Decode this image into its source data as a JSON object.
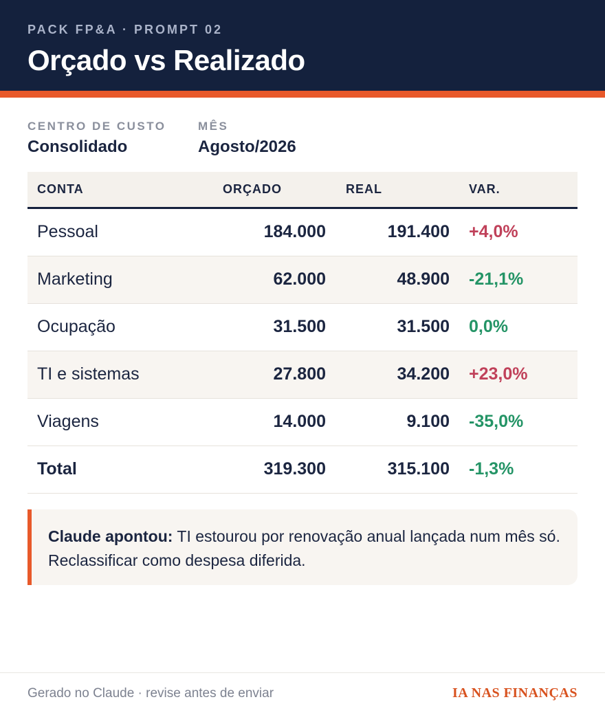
{
  "header": {
    "eyebrow": "PACK FP&A · PROMPT 02",
    "title": "Orçado vs Realizado",
    "accent_color": "#e8592a",
    "background_color": "#14213d"
  },
  "meta": {
    "cost_center_label": "CENTRO DE CUSTO",
    "cost_center_value": "Consolidado",
    "month_label": "MÊS",
    "month_value": "Agosto/2026"
  },
  "table": {
    "columns": [
      "CONTA",
      "ORÇADO",
      "REAL",
      "VAR."
    ],
    "rows": [
      {
        "conta": "Pessoal",
        "orcado": "184.000",
        "real": "191.400",
        "var": "+4,0%",
        "status": "over"
      },
      {
        "conta": "Marketing",
        "orcado": "62.000",
        "real": "48.900",
        "var": "-21,1%",
        "status": "under"
      },
      {
        "conta": "Ocupação",
        "orcado": "31.500",
        "real": "31.500",
        "var": "0,0%",
        "status": "under"
      },
      {
        "conta": "TI e sistemas",
        "orcado": "27.800",
        "real": "34.200",
        "var": "+23,0%",
        "status": "over"
      },
      {
        "conta": "Viagens",
        "orcado": "14.000",
        "real": "9.100",
        "var": "-35,0%",
        "status": "under"
      }
    ],
    "total": {
      "conta": "Total",
      "orcado": "319.300",
      "real": "315.100",
      "var": "-1,3%",
      "status": "under"
    },
    "colors": {
      "over": "#c0415a",
      "under": "#249466"
    }
  },
  "note": {
    "label": "Claude apontou:",
    "text": " TI estourou por renovação anual lançada num mês só. Reclassificar como despesa diferida."
  },
  "footer": {
    "left": "Gerado no Claude · revise antes de enviar",
    "brand": "IA NAS FINANÇAS"
  }
}
